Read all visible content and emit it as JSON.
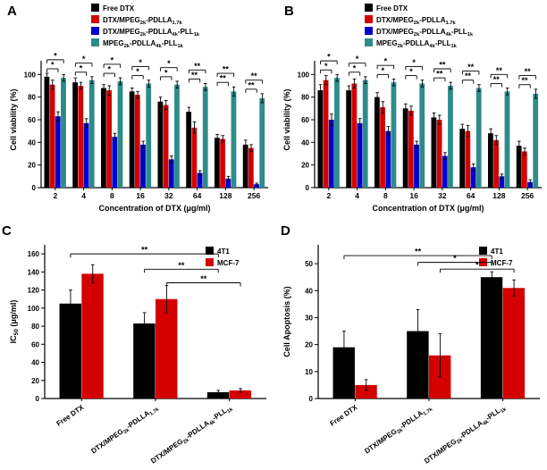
{
  "chart_data": [
    {
      "letter": "A",
      "type": "bar",
      "xlabel": "Concentration of DTX (μg/ml)",
      "ylabel": "Cell viability (%)",
      "categories": [
        "2",
        "4",
        "8",
        "16",
        "32",
        "64",
        "128",
        "256"
      ],
      "ylim": [
        0,
        120
      ],
      "yticks": [
        0,
        20,
        40,
        60,
        80,
        100
      ],
      "legend_position": "top",
      "series": [
        {
          "name": "Free DTX",
          "color": "#000000",
          "values": [
            98,
            93,
            88,
            85,
            76,
            67,
            44,
            38
          ],
          "errors": [
            3,
            4,
            3,
            3,
            4,
            4,
            3,
            4
          ]
        },
        {
          "name": "DTX/MPEG~2k~-PDLLA~1.7k~",
          "color": "#d40000",
          "values": [
            91,
            90,
            86,
            82,
            73,
            53,
            43,
            35
          ],
          "errors": [
            4,
            3,
            4,
            3,
            4,
            5,
            3,
            3
          ]
        },
        {
          "name": "DTX/MPEG~2k~-PDLLA~4k~-PLL~1k~",
          "color": "#0000cd",
          "values": [
            63,
            57,
            45,
            38,
            25,
            13,
            8,
            3
          ],
          "errors": [
            4,
            4,
            3,
            3,
            3,
            2,
            2,
            1
          ]
        },
        {
          "name": "MPEG~2k~-PDLLA~4k~-PLL~1k~",
          "color": "#2e8b8b",
          "values": [
            97,
            95,
            94,
            92,
            91,
            89,
            85,
            79
          ],
          "errors": [
            3,
            3,
            3,
            3,
            3,
            3,
            4,
            4
          ]
        }
      ],
      "group_brackets": [
        {
          "cat": 0,
          "from": 0,
          "to": 2,
          "level": 0,
          "label": "*"
        },
        {
          "cat": 0,
          "from": 0,
          "to": 3,
          "level": 1,
          "label": "*"
        },
        {
          "cat": 1,
          "from": 0,
          "to": 2,
          "level": 0,
          "label": "*"
        },
        {
          "cat": 1,
          "from": 0,
          "to": 3,
          "level": 1,
          "label": "*"
        },
        {
          "cat": 2,
          "from": 0,
          "to": 2,
          "level": 0,
          "label": "*"
        },
        {
          "cat": 2,
          "from": 0,
          "to": 3,
          "level": 1,
          "label": "*"
        },
        {
          "cat": 3,
          "from": 0,
          "to": 2,
          "level": 0,
          "label": "*"
        },
        {
          "cat": 3,
          "from": 0,
          "to": 3,
          "level": 1,
          "label": "*"
        },
        {
          "cat": 4,
          "from": 0,
          "to": 2,
          "level": 0,
          "label": "*"
        },
        {
          "cat": 4,
          "from": 0,
          "to": 3,
          "level": 1,
          "label": "*"
        },
        {
          "cat": 5,
          "from": 0,
          "to": 2,
          "level": 0,
          "label": "**"
        },
        {
          "cat": 5,
          "from": 0,
          "to": 3,
          "level": 1,
          "label": "**"
        },
        {
          "cat": 6,
          "from": 0,
          "to": 2,
          "level": 0,
          "label": "**"
        },
        {
          "cat": 6,
          "from": 0,
          "to": 3,
          "level": 1,
          "label": "**"
        },
        {
          "cat": 7,
          "from": 0,
          "to": 2,
          "level": 0,
          "label": "**"
        },
        {
          "cat": 7,
          "from": 0,
          "to": 3,
          "level": 1,
          "label": "**"
        }
      ]
    },
    {
      "letter": "B",
      "type": "bar",
      "xlabel": "Concentration of DTX (μg/ml)",
      "ylabel": "Cell viability (%)",
      "categories": [
        "2",
        "4",
        "8",
        "16",
        "32",
        "64",
        "128",
        "256"
      ],
      "ylim": [
        0,
        120
      ],
      "yticks": [
        0,
        20,
        40,
        60,
        80,
        100
      ],
      "legend_position": "top",
      "series": [
        {
          "name": "Free DTX",
          "color": "#000000",
          "values": [
            86,
            86,
            80,
            70,
            62,
            52,
            48,
            37
          ],
          "errors": [
            5,
            4,
            4,
            4,
            4,
            4,
            4,
            4
          ]
        },
        {
          "name": "DTX/MPEG~2k~-PDLLA~1.7k~",
          "color": "#d40000",
          "values": [
            95,
            92,
            71,
            68,
            60,
            50,
            42,
            32
          ],
          "errors": [
            4,
            4,
            5,
            4,
            4,
            5,
            4,
            3
          ]
        },
        {
          "name": "DTX/MPEG~2k~-PDLLA~4k~-PLL~1k~",
          "color": "#0000cd",
          "values": [
            60,
            57,
            50,
            38,
            28,
            18,
            10,
            5
          ],
          "errors": [
            5,
            4,
            4,
            3,
            3,
            3,
            2,
            2
          ]
        },
        {
          "name": "MPEG~2k~-PDLLA~4k~-PLL~1k~",
          "color": "#2e8b8b",
          "values": [
            97,
            95,
            93,
            92,
            90,
            88,
            85,
            83
          ],
          "errors": [
            3,
            3,
            3,
            3,
            3,
            3,
            3,
            4
          ]
        }
      ],
      "group_brackets": [
        {
          "cat": 0,
          "from": 0,
          "to": 2,
          "level": 0,
          "label": "*"
        },
        {
          "cat": 0,
          "from": 0,
          "to": 3,
          "level": 1,
          "label": "*"
        },
        {
          "cat": 1,
          "from": 0,
          "to": 2,
          "level": 0,
          "label": "*"
        },
        {
          "cat": 1,
          "from": 0,
          "to": 3,
          "level": 1,
          "label": "*"
        },
        {
          "cat": 2,
          "from": 0,
          "to": 2,
          "level": 0,
          "label": "*"
        },
        {
          "cat": 2,
          "from": 0,
          "to": 3,
          "level": 1,
          "label": "*"
        },
        {
          "cat": 3,
          "from": 0,
          "to": 2,
          "level": 0,
          "label": "*"
        },
        {
          "cat": 3,
          "from": 0,
          "to": 3,
          "level": 1,
          "label": "*"
        },
        {
          "cat": 4,
          "from": 0,
          "to": 2,
          "level": 0,
          "label": "**"
        },
        {
          "cat": 4,
          "from": 0,
          "to": 3,
          "level": 1,
          "label": "**"
        },
        {
          "cat": 5,
          "from": 0,
          "to": 2,
          "level": 0,
          "label": "**"
        },
        {
          "cat": 5,
          "from": 0,
          "to": 3,
          "level": 1,
          "label": "**"
        },
        {
          "cat": 6,
          "from": 0,
          "to": 2,
          "level": 0,
          "label": "**"
        },
        {
          "cat": 6,
          "from": 0,
          "to": 3,
          "level": 1,
          "label": "**"
        },
        {
          "cat": 7,
          "from": 0,
          "to": 2,
          "level": 0,
          "label": "**"
        },
        {
          "cat": 7,
          "from": 0,
          "to": 3,
          "level": 1,
          "label": "**"
        }
      ]
    },
    {
      "letter": "C",
      "type": "bar",
      "xlabel": "",
      "ylabel": "IC~50~ (μg/ml)",
      "categories": [
        "Free DTX",
        "DTX/MPEG~2k~-PDLLA~1.7k~",
        "DTX/MPEG~2k~-PDLLA~4k~-PLL~1k~"
      ],
      "ylim": [
        0,
        170
      ],
      "yticks": [
        0,
        20,
        40,
        60,
        80,
        100,
        120,
        140,
        160
      ],
      "legend_position": "inner",
      "series": [
        {
          "name": "4T1",
          "color": "#000000",
          "values": [
            105,
            83,
            7
          ],
          "errors": [
            15,
            12,
            2
          ]
        },
        {
          "name": "MCF-7",
          "color": "#d40000",
          "values": [
            138,
            110,
            9
          ],
          "errors": [
            10,
            15,
            2
          ]
        }
      ],
      "cross_brackets": [
        {
          "x1": [
            0,
            0
          ],
          "x2": [
            2,
            0
          ],
          "y": 160,
          "label": "**"
        },
        {
          "x1": [
            1,
            0
          ],
          "x2": [
            2,
            0
          ],
          "y": 143,
          "label": "**"
        },
        {
          "x1": [
            1,
            1
          ],
          "x2": [
            2,
            1
          ],
          "y": 128,
          "label": "**"
        }
      ]
    },
    {
      "letter": "D",
      "type": "bar",
      "xlabel": "",
      "ylabel": "Cell Apoptosis (%)",
      "categories": [
        "Free DTX",
        "DTX/MPEG~2k~-PDLLA~1.7k~",
        "DTX/MPEG~2k~-PDLLA~4k~-PLL~1k~"
      ],
      "ylim": [
        0,
        57
      ],
      "yticks": [
        0,
        10,
        20,
        30,
        40,
        50
      ],
      "legend_position": "inner",
      "series": [
        {
          "name": "4T1",
          "color": "#000000",
          "values": [
            19,
            25,
            45
          ],
          "errors": [
            6,
            8,
            2
          ]
        },
        {
          "name": "MCF-7",
          "color": "#d40000",
          "values": [
            5,
            16,
            41
          ],
          "errors": [
            2,
            8,
            3
          ]
        }
      ],
      "cross_brackets": [
        {
          "x1": [
            0,
            0
          ],
          "x2": [
            2,
            0
          ],
          "y": 53,
          "label": "**"
        },
        {
          "x1": [
            1,
            0
          ],
          "x2": [
            2,
            0
          ],
          "y": 50.5,
          "label": "*"
        },
        {
          "x1": [
            1,
            1
          ],
          "x2": [
            2,
            1
          ],
          "y": 48,
          "label": "*"
        }
      ]
    }
  ]
}
